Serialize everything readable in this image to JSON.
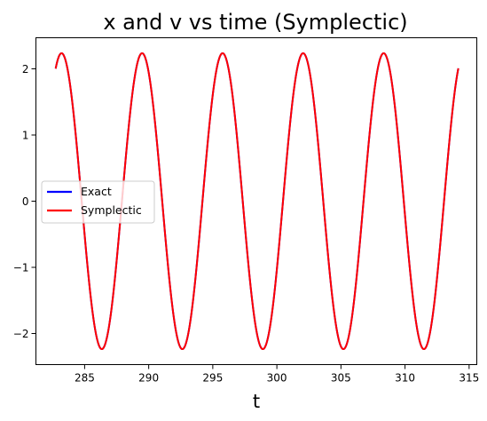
{
  "chart_data": {
    "type": "line",
    "title": "x and v vs time (Symplectic)",
    "xlabel": "t",
    "ylabel": "",
    "xlim": [
      281.2,
      315.6
    ],
    "ylim": [
      -2.47,
      2.47
    ],
    "xticks": [
      285,
      290,
      295,
      300,
      305,
      310,
      315
    ],
    "yticks": [
      2,
      1,
      0,
      -1,
      -2
    ],
    "ytick_labels": [
      "2",
      "1",
      "0",
      "−1",
      "−2"
    ],
    "grid": false,
    "legend_position": "center-left",
    "t_range": [
      282.74,
      314.16
    ],
    "series": [
      {
        "name": "Exact",
        "color": "#0000ff",
        "amplitude": 2.236,
        "period": 6.283,
        "first_peak_t": 283.2
      },
      {
        "name": "Symplectic",
        "color": "#ff0000",
        "amplitude": 2.236,
        "period": 6.283,
        "first_peak_t": 283.2
      }
    ]
  }
}
